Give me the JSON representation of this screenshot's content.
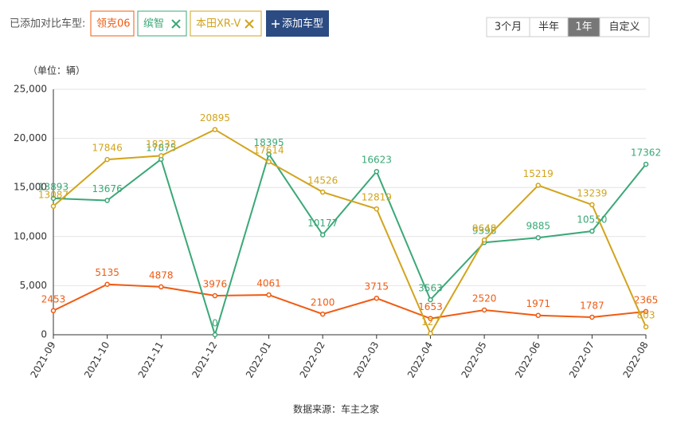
{
  "ui": {
    "added_label": "已添加对比车型:",
    "add_button": "添加车型",
    "range_buttons": [
      "3个月",
      "半年",
      "1年",
      "自定义"
    ],
    "active_range": 2,
    "source": "数据来源：车主之家"
  },
  "chart_data": {
    "type": "line",
    "y_axis_label": "（单位：辆）",
    "categories": [
      "2021-09",
      "2021-10",
      "2021-11",
      "2021-12",
      "2022-01",
      "2022-02",
      "2022-03",
      "2022-04",
      "2022-05",
      "2022-06",
      "2022-07",
      "2022-08"
    ],
    "series": [
      {
        "name": "领克06",
        "color": "#f05b12",
        "values": [
          2453,
          5135,
          4878,
          3976,
          4061,
          2100,
          3715,
          1653,
          2520,
          1971,
          1787,
          2365
        ]
      },
      {
        "name": "缤智",
        "color": "#3aa877",
        "values": [
          13893,
          13676,
          17875,
          0,
          18395,
          10177,
          16623,
          3563,
          9398,
          9885,
          10550,
          17362
        ]
      },
      {
        "name": "本田XR-V",
        "color": "#d2a41c",
        "values": [
          13087,
          17846,
          18233,
          20895,
          17614,
          14526,
          12819,
          127,
          9648,
          15219,
          13239,
          803
        ]
      }
    ],
    "ylim": [
      0,
      25000
    ],
    "yticks": [
      0,
      {
        "value": 5000,
        "label": "5,000"
      },
      {
        "value": 10000,
        "label": "10,000"
      },
      {
        "value": 15000,
        "label": "15,000"
      },
      {
        "value": 20000,
        "label": "20,000"
      },
      {
        "value": 25000,
        "label": "25,000"
      }
    ],
    "grid": true
  }
}
